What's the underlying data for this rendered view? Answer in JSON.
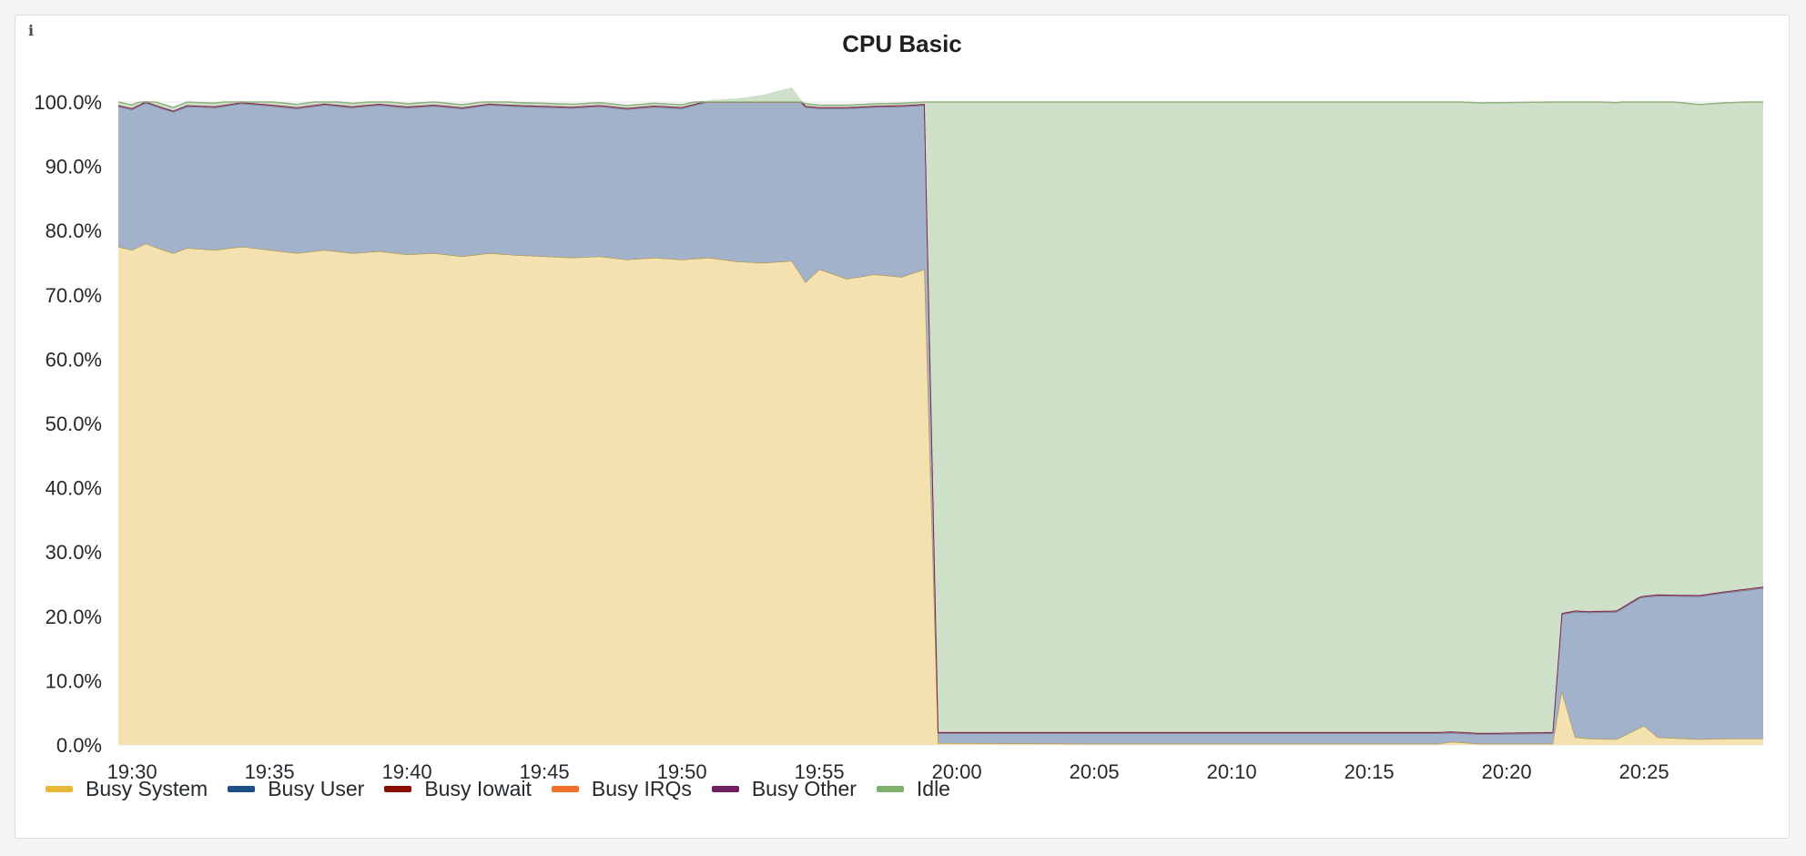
{
  "panel": {
    "title": "CPU Basic",
    "info_icon": "info-icon"
  },
  "chart_data": {
    "type": "area",
    "stacked": true,
    "title": "CPU Basic",
    "x_unit": "time",
    "x_ticks": [
      "19:30",
      "19:35",
      "19:40",
      "19:45",
      "19:50",
      "19:55",
      "20:00",
      "20:05",
      "20:10",
      "20:15",
      "20:20",
      "20:25"
    ],
    "y_ticks": [
      "0.0%",
      "10.0%",
      "20.0%",
      "30.0%",
      "40.0%",
      "50.0%",
      "60.0%",
      "70.0%",
      "80.0%",
      "90.0%",
      "100.0%"
    ],
    "ylim": [
      0,
      100
    ],
    "xlim": [
      "19:29:30",
      "20:29:20"
    ],
    "grid": true,
    "legend_position": "bottom-left",
    "series": [
      {
        "name": "Busy System",
        "color": "#eab839",
        "points": [
          [
            "19:29:30",
            77.5
          ],
          [
            "19:30:00",
            77.0
          ],
          [
            "19:30:30",
            78.0
          ],
          [
            "19:31:00",
            77.2
          ],
          [
            "19:31:30",
            76.5
          ],
          [
            "19:32:00",
            77.3
          ],
          [
            "19:33:00",
            77.0
          ],
          [
            "19:34:00",
            77.5
          ],
          [
            "19:35:00",
            77.0
          ],
          [
            "19:36:00",
            76.5
          ],
          [
            "19:37:00",
            77.0
          ],
          [
            "19:38:00",
            76.5
          ],
          [
            "19:39:00",
            76.8
          ],
          [
            "19:40:00",
            76.3
          ],
          [
            "19:41:00",
            76.5
          ],
          [
            "19:42:00",
            76.0
          ],
          [
            "19:43:00",
            76.5
          ],
          [
            "19:44:00",
            76.2
          ],
          [
            "19:45:00",
            76.0
          ],
          [
            "19:46:00",
            75.8
          ],
          [
            "19:47:00",
            76.0
          ],
          [
            "19:48:00",
            75.5
          ],
          [
            "19:49:00",
            75.8
          ],
          [
            "19:50:00",
            75.5
          ],
          [
            "19:51:00",
            75.8
          ],
          [
            "19:52:00",
            75.2
          ],
          [
            "19:53:00",
            75.0
          ],
          [
            "19:54:00",
            75.3
          ],
          [
            "19:54:30",
            72.0
          ],
          [
            "19:55:00",
            74.0
          ],
          [
            "19:56:00",
            72.5
          ],
          [
            "19:57:00",
            73.2
          ],
          [
            "19:58:00",
            72.8
          ],
          [
            "19:58:50",
            74.0
          ],
          [
            "19:59:20",
            0.3
          ],
          [
            "20:05:00",
            0.2
          ],
          [
            "20:10:00",
            0.2
          ],
          [
            "20:17:30",
            0.2
          ],
          [
            "20:18:00",
            0.5
          ],
          [
            "20:19:00",
            0.2
          ],
          [
            "20:21:40",
            0.2
          ],
          [
            "20:22:00",
            8.5
          ],
          [
            "20:22:30",
            1.2
          ],
          [
            "20:23:00",
            1.0
          ],
          [
            "20:24:00",
            0.9
          ],
          [
            "20:25:00",
            3.0
          ],
          [
            "20:25:30",
            1.2
          ],
          [
            "20:27:00",
            0.9
          ],
          [
            "20:28:00",
            1.0
          ],
          [
            "20:29:20",
            1.0
          ]
        ]
      },
      {
        "name": "Busy User",
        "color": "#1f4f87",
        "points": [
          [
            "19:29:30",
            21.8
          ],
          [
            "19:32:00",
            22.0
          ],
          [
            "19:35:00",
            22.4
          ],
          [
            "19:40:00",
            22.8
          ],
          [
            "19:45:00",
            23.2
          ],
          [
            "19:50:00",
            23.5
          ],
          [
            "19:54:30",
            27.2
          ],
          [
            "19:55:00",
            25.0
          ],
          [
            "19:56:00",
            26.5
          ],
          [
            "19:57:00",
            26.0
          ],
          [
            "19:58:00",
            26.5
          ],
          [
            "19:58:50",
            25.5
          ],
          [
            "19:59:20",
            1.5
          ],
          [
            "20:05:00",
            1.6
          ],
          [
            "20:10:00",
            1.6
          ],
          [
            "20:17:30",
            1.6
          ],
          [
            "20:18:00",
            1.4
          ],
          [
            "20:21:40",
            1.6
          ],
          [
            "20:22:00",
            11.8
          ],
          [
            "20:22:30",
            19.5
          ],
          [
            "20:24:00",
            19.8
          ],
          [
            "20:24:50",
            20.2
          ],
          [
            "20:25:00",
            20.0
          ],
          [
            "20:25:30",
            22.0
          ],
          [
            "20:27:00",
            22.2
          ],
          [
            "20:29:20",
            23.4
          ]
        ]
      },
      {
        "name": "Busy Iowait",
        "color": "#890f02",
        "points": [
          [
            "19:29:30",
            0.2
          ],
          [
            "20:29:20",
            0.2
          ]
        ]
      },
      {
        "name": "Busy IRQs",
        "color": "#ef6f2b",
        "points": [
          [
            "19:29:30",
            0.0
          ],
          [
            "20:29:20",
            0.0
          ]
        ]
      },
      {
        "name": "Busy Other",
        "color": "#6d1f62",
        "points": [
          [
            "19:29:30",
            0.0
          ],
          [
            "20:29:20",
            0.0
          ]
        ]
      },
      {
        "name": "Idle",
        "color": "#7eb26d",
        "points": [
          [
            "19:29:30",
            0.5
          ],
          [
            "19:58:50",
            0.3
          ],
          [
            "19:59:20",
            98.0
          ],
          [
            "20:21:40",
            98.0
          ],
          [
            "20:22:00",
            79.5
          ],
          [
            "20:24:50",
            78.8
          ],
          [
            "20:25:00",
            77.0
          ],
          [
            "20:29:20",
            75.5
          ]
        ]
      }
    ]
  }
}
